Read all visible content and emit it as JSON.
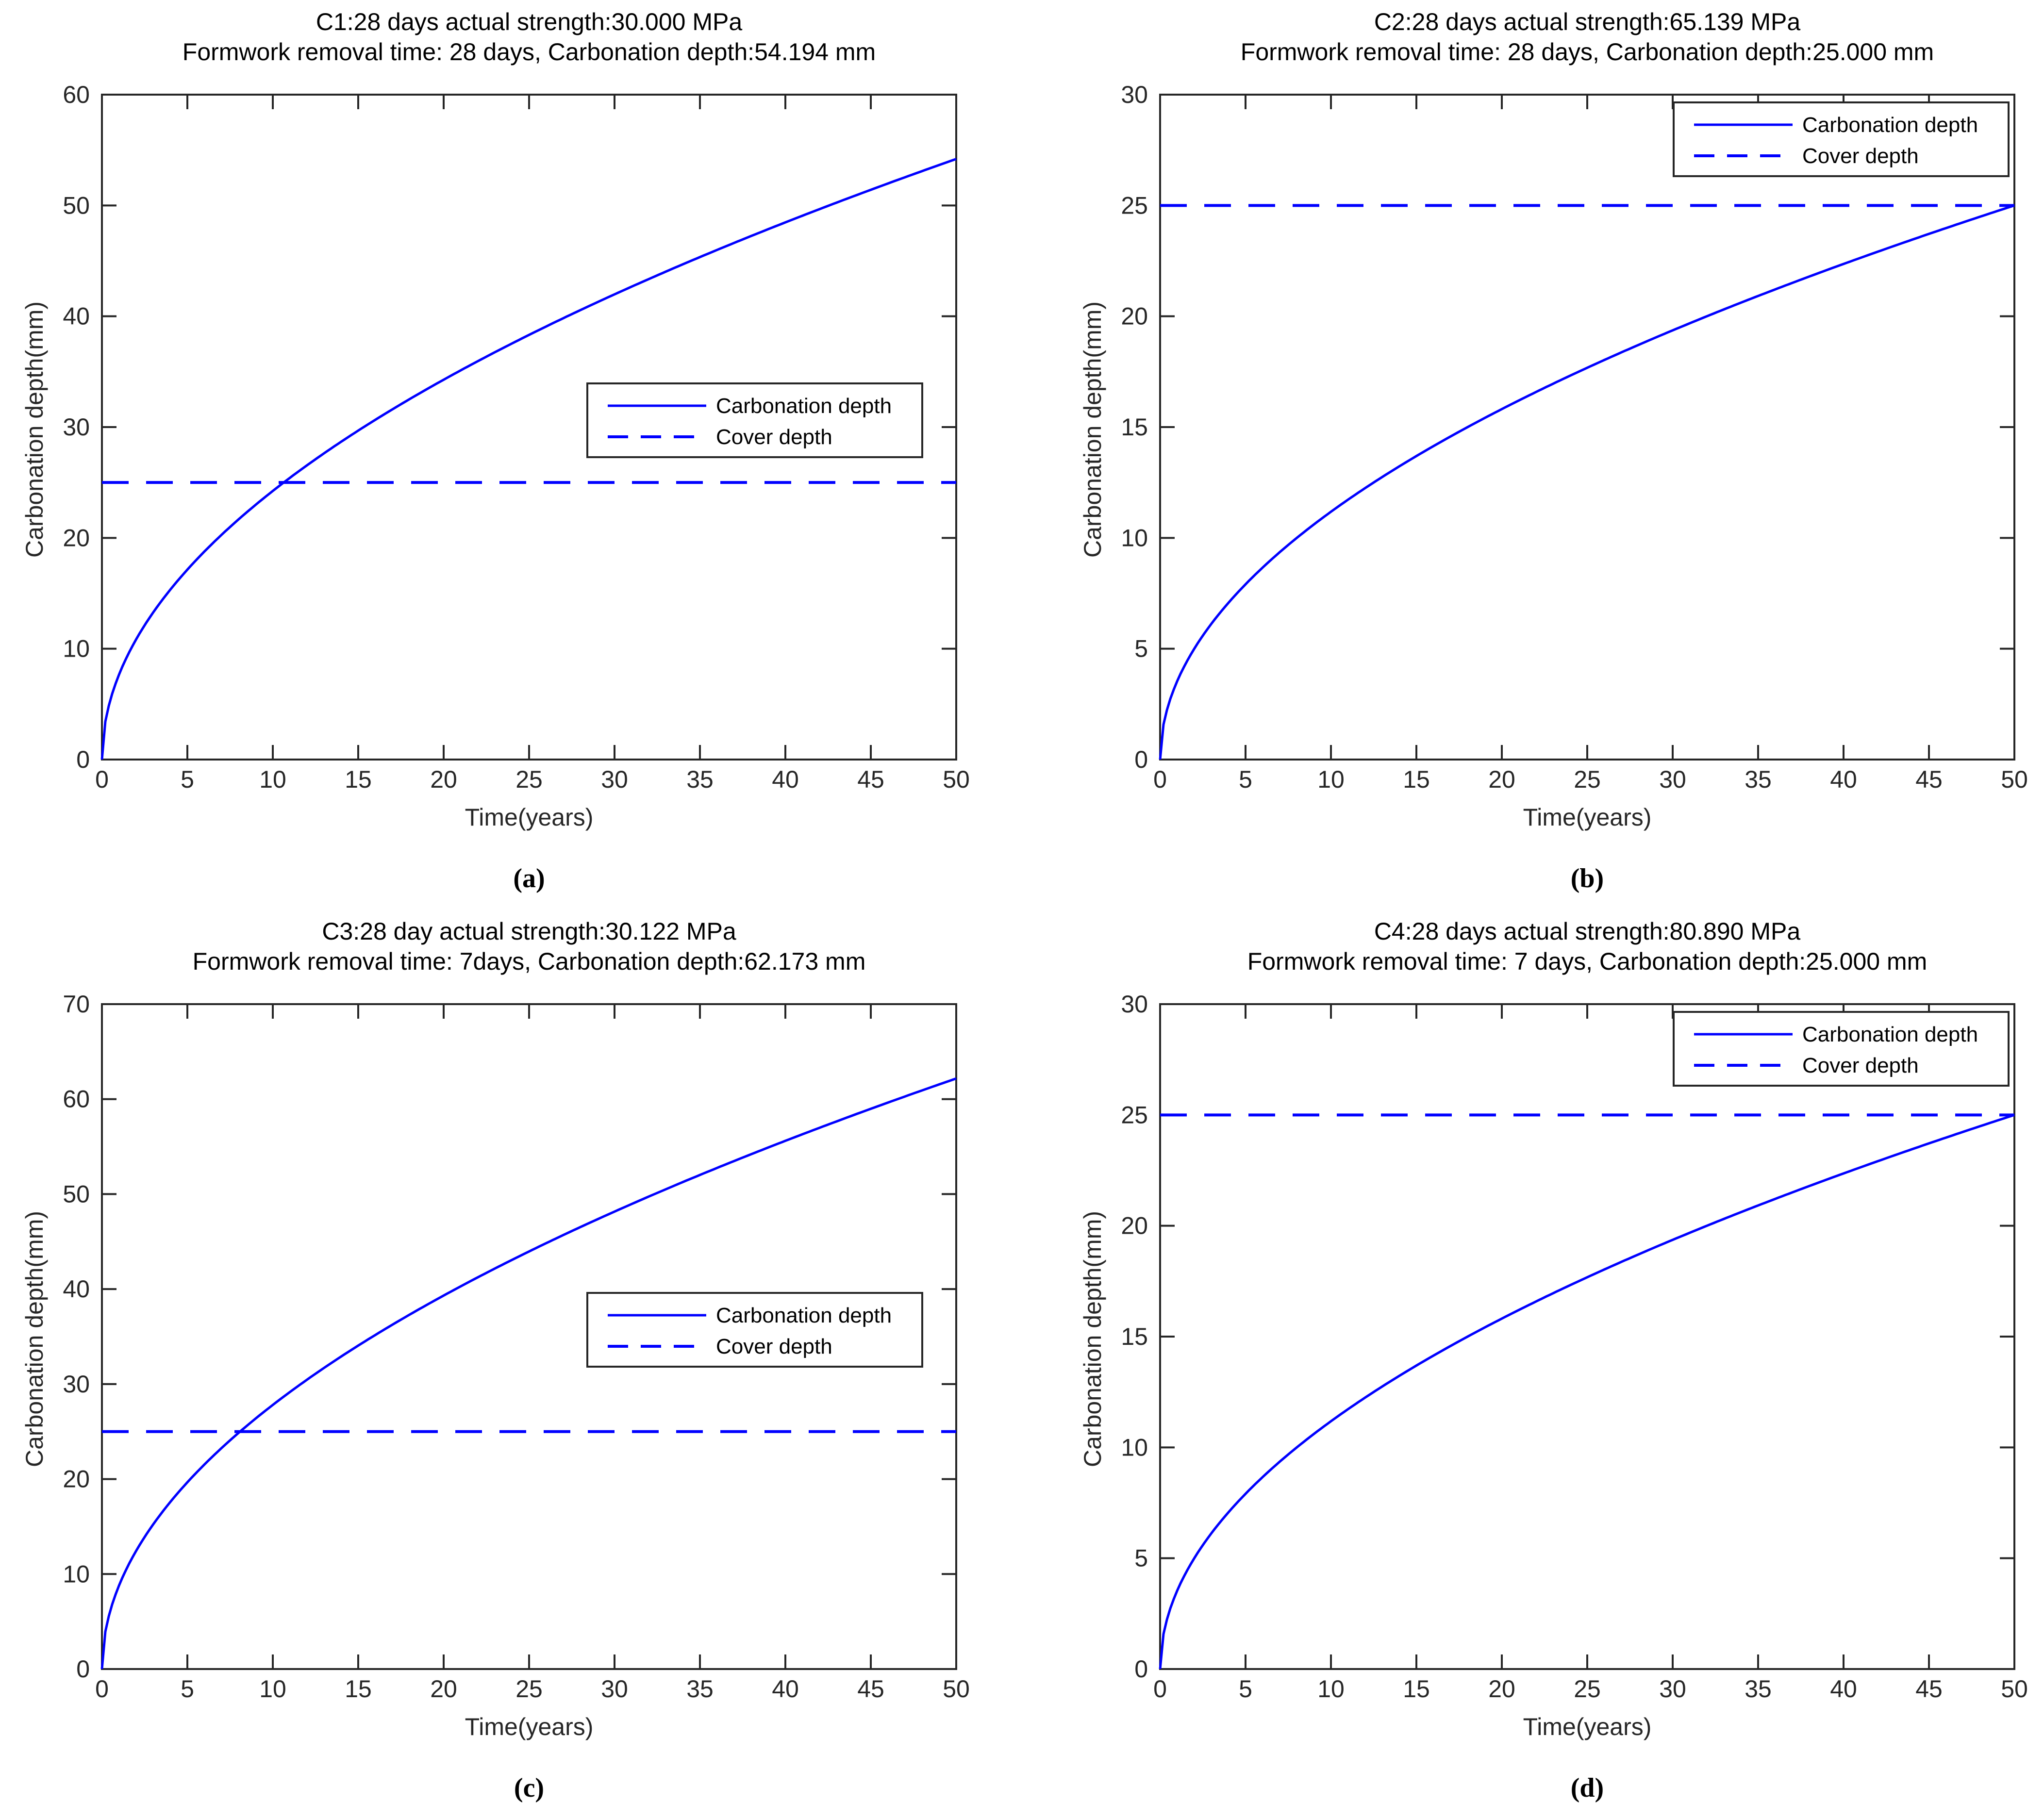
{
  "figure": {
    "background": "#ffffff",
    "curve_color": "#0000FF",
    "axis_color": "#262626",
    "title_color": "#000000"
  },
  "chart_data": [
    {
      "panel_label": "(a)",
      "type": "line",
      "title_line1": "C1:28 days actual strength:30.000 MPa",
      "title_line2": "Formwork removal time: 28 days, Carbonation depth:54.194 mm",
      "xlabel": "Time(years)",
      "ylabel": "Carbonation depth(mm)",
      "xlim": [
        0,
        50
      ],
      "ylim": [
        0,
        60
      ],
      "xticks": [
        0,
        5,
        10,
        15,
        20,
        25,
        30,
        35,
        40,
        45,
        50
      ],
      "yticks": [
        0,
        10,
        20,
        30,
        40,
        50,
        60
      ],
      "grid": false,
      "legend": {
        "position": "mid-right",
        "entries": [
          "Carbonation depth",
          "Cover depth"
        ]
      },
      "series": [
        {
          "name": "Carbonation depth",
          "style": "solid",
          "x": [
            0,
            5,
            10,
            15,
            20,
            25,
            30,
            35,
            40,
            45,
            50
          ],
          "y": [
            0,
            17.14,
            24.24,
            29.68,
            34.27,
            38.32,
            41.98,
            45.34,
            48.47,
            51.41,
            54.19
          ]
        },
        {
          "name": "Cover depth",
          "style": "dashed",
          "constant": 25
        }
      ],
      "final_depth_mm": 54.194,
      "cover_depth_mm": 25
    },
    {
      "panel_label": "(b)",
      "type": "line",
      "title_line1": "C2:28 days actual strength:65.139 MPa",
      "title_line2": "Formwork removal time: 28 days, Carbonation depth:25.000 mm",
      "xlabel": "Time(years)",
      "ylabel": "Carbonation depth(mm)",
      "xlim": [
        0,
        50
      ],
      "ylim": [
        0,
        30
      ],
      "xticks": [
        0,
        5,
        10,
        15,
        20,
        25,
        30,
        35,
        40,
        45,
        50
      ],
      "yticks": [
        0,
        5,
        10,
        15,
        20,
        25,
        30
      ],
      "grid": false,
      "legend": {
        "position": "top-right",
        "entries": [
          "Carbonation depth",
          "Cover depth"
        ]
      },
      "series": [
        {
          "name": "Carbonation depth",
          "style": "solid",
          "x": [
            0,
            5,
            10,
            15,
            20,
            25,
            30,
            35,
            40,
            45,
            50
          ],
          "y": [
            0,
            7.91,
            11.18,
            13.69,
            15.81,
            17.68,
            19.36,
            20.92,
            22.36,
            23.72,
            25.0
          ]
        },
        {
          "name": "Cover depth",
          "style": "dashed",
          "constant": 25
        }
      ],
      "final_depth_mm": 25.0,
      "cover_depth_mm": 25
    },
    {
      "panel_label": "(c)",
      "type": "line",
      "title_line1": "C3:28 day actual strength:30.122 MPa",
      "title_line2": "Formwork removal time: 7days, Carbonation depth:62.173 mm",
      "xlabel": "Time(years)",
      "ylabel": "Carbonation depth(mm)",
      "xlim": [
        0,
        50
      ],
      "ylim": [
        0,
        70
      ],
      "xticks": [
        0,
        5,
        10,
        15,
        20,
        25,
        30,
        35,
        40,
        45,
        50
      ],
      "yticks": [
        0,
        10,
        20,
        30,
        40,
        50,
        60,
        70
      ],
      "grid": false,
      "legend": {
        "position": "mid-right",
        "entries": [
          "Carbonation depth",
          "Cover depth"
        ]
      },
      "series": [
        {
          "name": "Carbonation depth",
          "style": "solid",
          "x": [
            0,
            5,
            10,
            15,
            20,
            25,
            30,
            35,
            40,
            45,
            50
          ],
          "y": [
            0,
            19.66,
            27.8,
            34.05,
            39.32,
            43.96,
            48.16,
            52.02,
            55.61,
            58.98,
            62.17
          ]
        },
        {
          "name": "Cover depth",
          "style": "dashed",
          "constant": 25
        }
      ],
      "final_depth_mm": 62.173,
      "cover_depth_mm": 25
    },
    {
      "panel_label": "(d)",
      "type": "line",
      "title_line1": "C4:28 days actual strength:80.890 MPa",
      "title_line2": "Formwork removal time: 7 days, Carbonation depth:25.000 mm",
      "xlabel": "Time(years)",
      "ylabel": "Carbonation depth(mm)",
      "xlim": [
        0,
        50
      ],
      "ylim": [
        0,
        30
      ],
      "xticks": [
        0,
        5,
        10,
        15,
        20,
        25,
        30,
        35,
        40,
        45,
        50
      ],
      "yticks": [
        0,
        5,
        10,
        15,
        20,
        25,
        30
      ],
      "grid": false,
      "legend": {
        "position": "top-right",
        "entries": [
          "Carbonation depth",
          "Cover depth"
        ]
      },
      "series": [
        {
          "name": "Carbonation depth",
          "style": "solid",
          "x": [
            0,
            5,
            10,
            15,
            20,
            25,
            30,
            35,
            40,
            45,
            50
          ],
          "y": [
            0,
            7.91,
            11.18,
            13.69,
            15.81,
            17.68,
            19.36,
            20.92,
            22.36,
            23.72,
            25.0
          ]
        },
        {
          "name": "Cover depth",
          "style": "dashed",
          "constant": 25
        }
      ],
      "final_depth_mm": 25.0,
      "cover_depth_mm": 25
    }
  ]
}
